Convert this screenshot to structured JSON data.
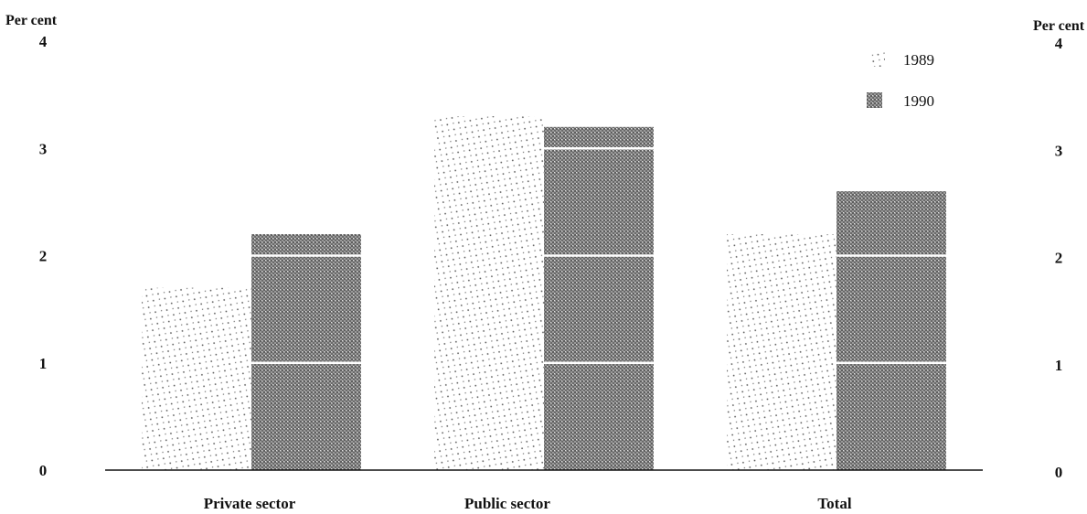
{
  "chart_data": {
    "type": "bar",
    "categories": [
      "Private sector",
      "Public sector",
      "Total"
    ],
    "series": [
      {
        "name": "1989",
        "values": [
          1.7,
          3.3,
          2.2
        ],
        "color": "#777777",
        "fill": "sparse-dots"
      },
      {
        "name": "1990",
        "values": [
          2.2,
          3.2,
          2.6
        ],
        "color": "#8a8a8a",
        "fill": "dense-halftone"
      }
    ],
    "ylabel_left": "Per cent",
    "ylabel_right": "Per cent",
    "ylim": [
      0,
      4
    ],
    "yticks": [
      0,
      1,
      2,
      3,
      4
    ],
    "grid": false,
    "bar_bands": true,
    "legend_position": "top-right"
  }
}
